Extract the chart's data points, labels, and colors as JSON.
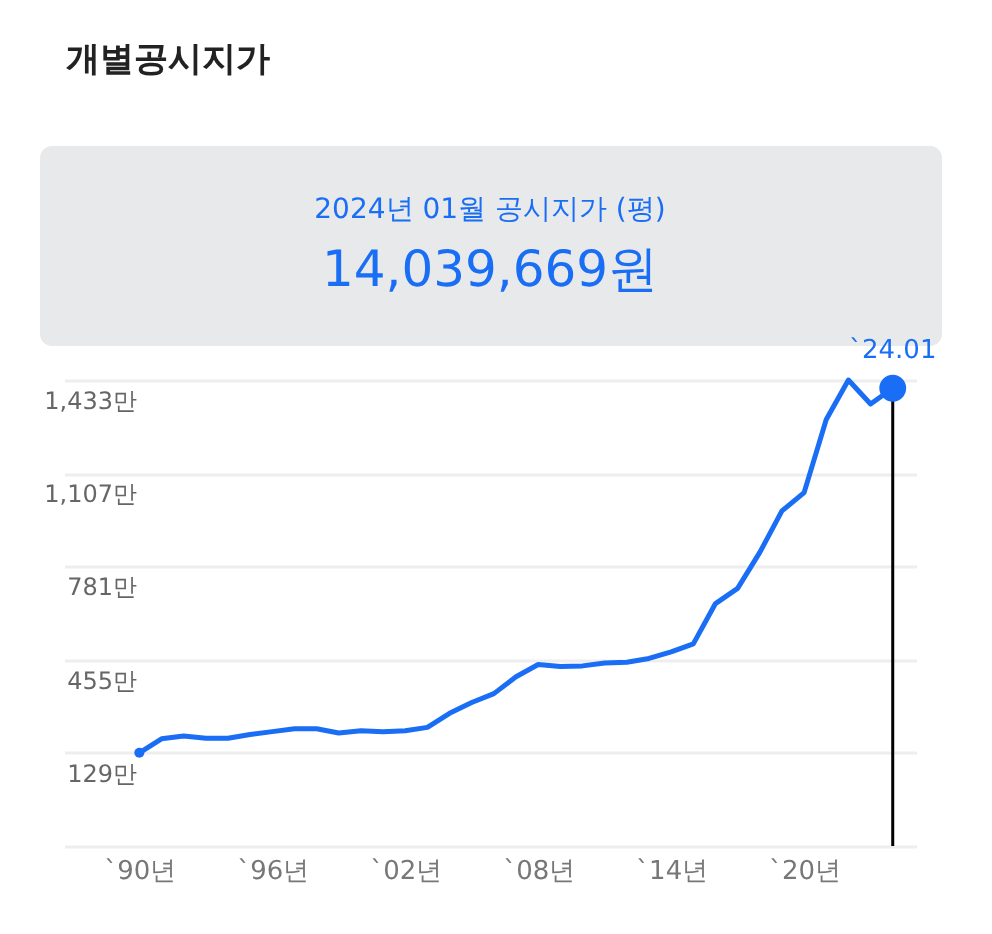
{
  "chart_data": {
    "type": "line",
    "title": "개별공시지가",
    "subtitle": "2024년 01월 공시지가 (평)",
    "annotations": [
      "14,039,669원",
      {
        "text": "`24.01",
        "y": 1404
      }
    ],
    "categories": [
      "`90년",
      null,
      null,
      null,
      null,
      null,
      "`96년",
      null,
      null,
      null,
      null,
      null,
      "`02년",
      null,
      null,
      null,
      null,
      null,
      "`08년",
      null,
      null,
      null,
      null,
      null,
      "`14년",
      null,
      null,
      null,
      null,
      null,
      "`20년",
      null,
      null,
      null,
      null
    ],
    "series": [
      {
        "color": "#1a6ef5",
        "values": [
          129,
          178,
          188,
          180,
          180,
          193,
          203,
          213,
          213,
          198,
          206,
          203,
          206,
          218,
          267,
          305,
          336,
          395,
          438,
          431,
          433,
          443,
          446,
          459,
          482,
          510,
          651,
          704,
          830,
          975,
          1039,
          1295,
          1433,
          1349,
          1404
        ]
      }
    ],
    "ylim": [
      -197,
      1433
    ],
    "yticks": [
      {
        "value": -197,
        "label": null
      },
      {
        "value": 129,
        "label": "129만"
      },
      {
        "value": 455,
        "label": "455만"
      },
      {
        "value": 781,
        "label": "781만"
      },
      {
        "value": 1107,
        "label": "1,107만"
      },
      {
        "value": 1433,
        "label": "1,433만"
      }
    ],
    "grid": "y"
  }
}
